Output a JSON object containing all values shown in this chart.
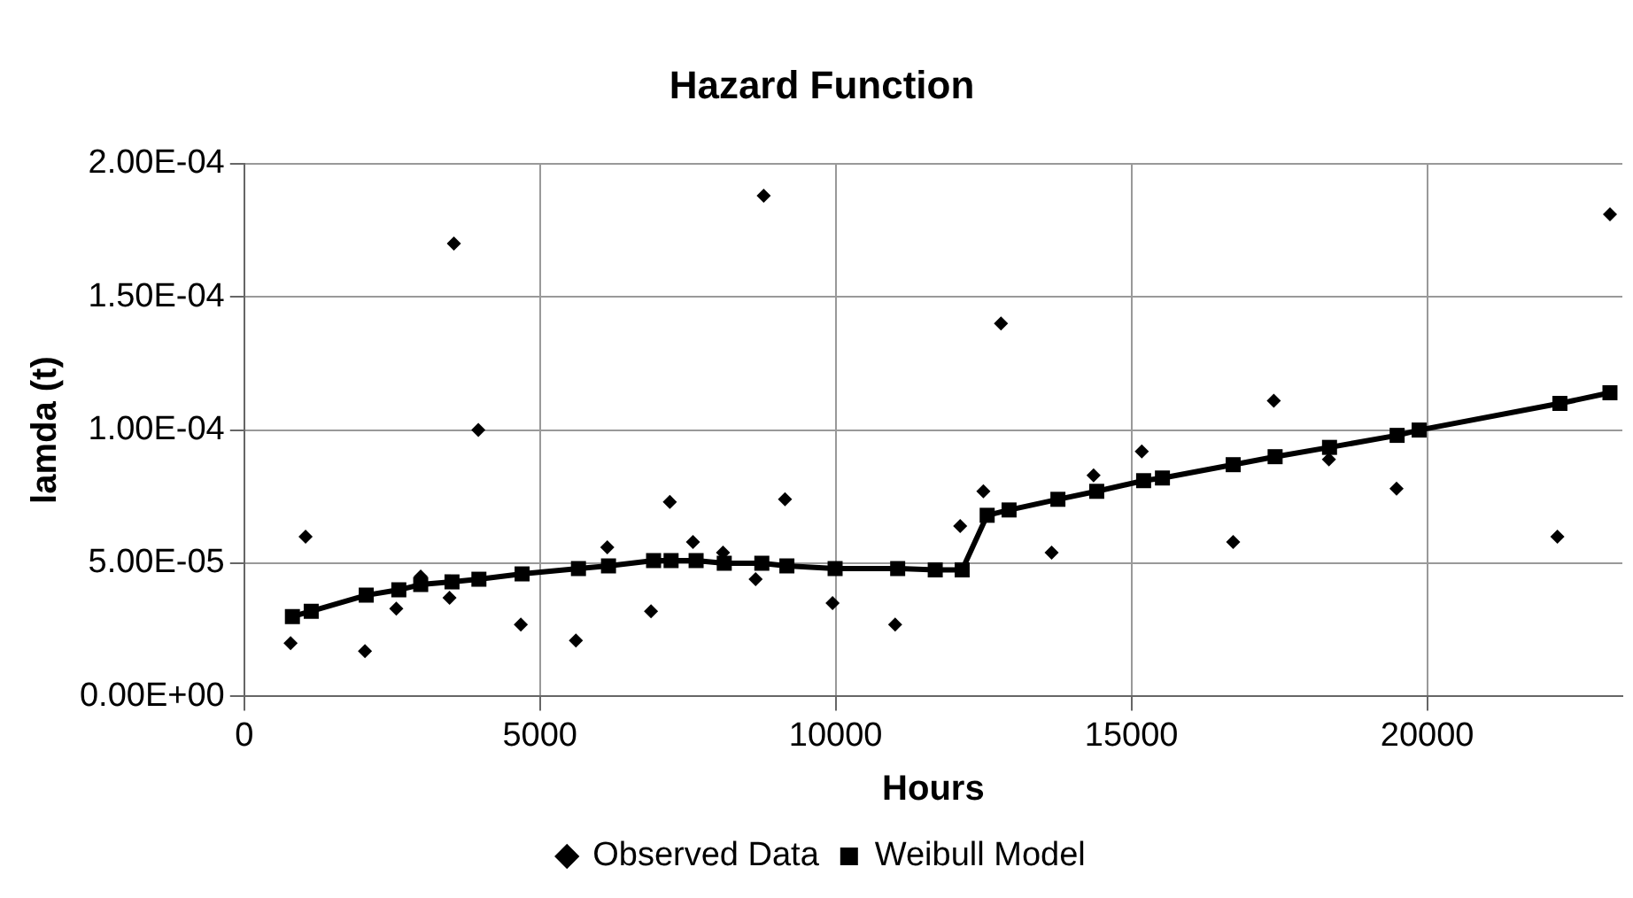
{
  "chart_data": {
    "type": "scatter",
    "title": "Hazard Function",
    "xlabel": "Hours",
    "ylabel": "lamda (t)",
    "xlim": [
      0,
      23300
    ],
    "xticks": [
      0,
      5000,
      10000,
      15000,
      20000
    ],
    "ylim": [
      0,
      0.0002
    ],
    "yticks": [
      {
        "value": 0,
        "label": "0.00E+00"
      },
      {
        "value": 5e-05,
        "label": "5.00E-05"
      },
      {
        "value": 0.0001,
        "label": "1.00E-04"
      },
      {
        "value": 0.00015,
        "label": "1.50E-04"
      },
      {
        "value": 0.0002,
        "label": "2.00E-04"
      }
    ],
    "grid": true,
    "legend": "bottom",
    "series": [
      {
        "name": "Observed Data",
        "type": "scatter",
        "marker": "diamond",
        "color": "#000000",
        "x": [
          784,
          1038,
          2042,
          2571,
          2984,
          3471,
          3545,
          3958,
          4677,
          5608,
          6138,
          6878,
          7196,
          7587,
          8095,
          8646,
          8783,
          9143,
          9947,
          11005,
          12105,
          12497,
          12794,
          13651,
          14360,
          15175,
          16720,
          17407,
          18339,
          19482,
          22201,
          23090
        ],
        "values": [
          2e-05,
          6e-05,
          1.7e-05,
          3.3e-05,
          4.5e-05,
          3.7e-05,
          0.00017,
          0.0001,
          2.7e-05,
          2.1e-05,
          5.6e-05,
          3.2e-05,
          7.3e-05,
          5.8e-05,
          5.4e-05,
          4.4e-05,
          0.000188,
          7.4e-05,
          3.5e-05,
          2.7e-05,
          6.4e-05,
          7.7e-05,
          0.00014,
          5.4e-05,
          8.3e-05,
          9.2e-05,
          5.8e-05,
          0.000111,
          8.9e-05,
          7.8e-05,
          6e-05,
          0.000181
        ]
      },
      {
        "name": "Weibull Model",
        "type": "line",
        "marker": "square",
        "line_style": "solid",
        "color": "#000000",
        "x": [
          815,
          1133,
          2063,
          2614,
          2984,
          3513,
          3968,
          4698,
          5651,
          6159,
          6921,
          7217,
          7640,
          8116,
          8751,
          9175,
          9990,
          11048,
          11683,
          12138,
          12561,
          12931,
          13757,
          14413,
          15206,
          15524,
          16720,
          17429,
          18349,
          19492,
          19864,
          22244,
          23090
        ],
        "values": [
          3e-05,
          3.2e-05,
          3.8e-05,
          4e-05,
          4.2e-05,
          4.3e-05,
          4.4e-05,
          4.6e-05,
          4.8e-05,
          4.9e-05,
          5.1e-05,
          5.1e-05,
          5.1e-05,
          5e-05,
          5e-05,
          4.9e-05,
          4.8e-05,
          4.8e-05,
          4.75e-05,
          4.75e-05,
          6.8e-05,
          7e-05,
          7.4e-05,
          7.7e-05,
          8.1e-05,
          8.2e-05,
          8.7e-05,
          9e-05,
          9.35e-05,
          9.8e-05,
          0.0001,
          0.00011,
          0.000114
        ]
      }
    ]
  }
}
